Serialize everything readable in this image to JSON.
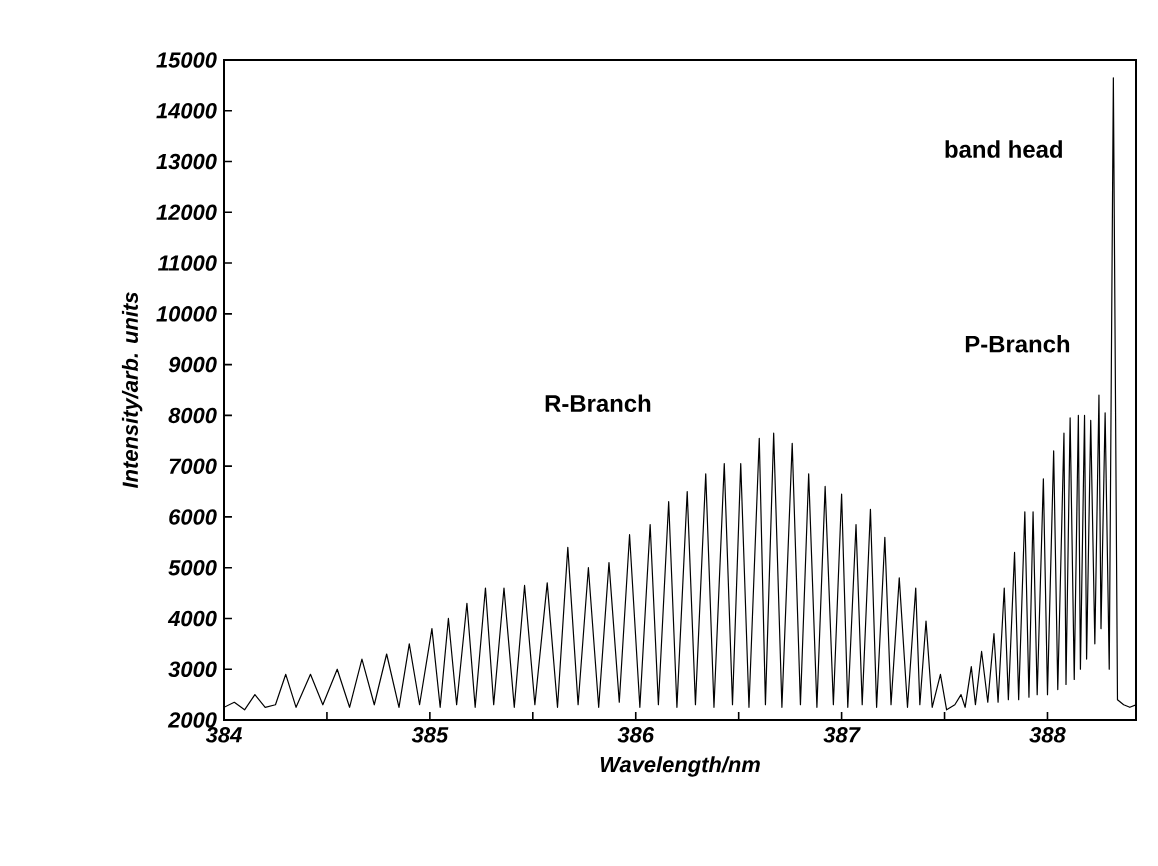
{
  "chart_data": {
    "type": "line",
    "xlabel": "Wavelength/nm",
    "ylabel": "Intensity/arb. units",
    "xlim": [
      384,
      388.43
    ],
    "ylim": [
      2000,
      15000
    ],
    "xticks": [
      384,
      {
        "value": 384.5,
        "label": null
      },
      385,
      {
        "value": 385.5,
        "label": null
      },
      386,
      {
        "value": 386.5,
        "label": null
      },
      387,
      {
        "value": 387.5,
        "label": null
      },
      388
    ],
    "yticks": [
      2000,
      3000,
      4000,
      5000,
      6000,
      7000,
      8000,
      9000,
      10000,
      11000,
      12000,
      13000,
      14000,
      15000
    ],
    "grid": false,
    "marker": "none",
    "line_style": "solid",
    "annotations": [
      "R-Branch",
      "P-Branch",
      "band head"
    ],
    "series": [
      {
        "color": "#000000",
        "x": [
          384.0,
          384.05,
          384.1,
          384.15,
          384.2,
          384.25,
          384.3,
          384.35,
          384.42,
          384.48,
          384.55,
          384.61,
          384.67,
          384.73,
          384.79,
          384.85,
          384.9,
          384.95,
          385.01,
          385.05,
          385.09,
          385.13,
          385.18,
          385.22,
          385.27,
          385.31,
          385.36,
          385.41,
          385.46,
          385.51,
          385.57,
          385.62,
          385.67,
          385.72,
          385.77,
          385.82,
          385.87,
          385.92,
          385.97,
          386.02,
          386.07,
          386.11,
          386.16,
          386.2,
          386.25,
          386.29,
          386.34,
          386.38,
          386.43,
          386.47,
          386.51,
          386.55,
          386.6,
          386.63,
          386.67,
          386.71,
          386.76,
          386.8,
          386.84,
          386.88,
          386.92,
          386.96,
          387.0,
          387.03,
          387.07,
          387.1,
          387.14,
          387.17,
          387.21,
          387.24,
          387.28,
          387.32,
          387.36,
          387.38,
          387.41,
          387.44,
          387.48,
          387.51,
          387.55,
          387.58,
          387.6,
          387.63,
          387.65,
          387.68,
          387.71,
          387.74,
          387.76,
          387.79,
          387.81,
          387.84,
          387.86,
          387.89,
          387.91,
          387.93,
          387.95,
          387.98,
          388.0,
          388.03,
          388.05,
          388.08,
          388.09,
          388.11,
          388.13,
          388.15,
          388.16,
          388.18,
          388.19,
          388.21,
          388.23,
          388.25,
          388.26,
          388.28,
          388.3,
          388.32,
          388.34,
          388.37,
          388.4,
          388.43
        ],
        "values": [
          2250,
          2350,
          2200,
          2500,
          2250,
          2300,
          2900,
          2250,
          2900,
          2300,
          3000,
          2250,
          3200,
          2300,
          3300,
          2250,
          3500,
          2300,
          3800,
          2250,
          4000,
          2300,
          4300,
          2250,
          4600,
          2300,
          4600,
          2250,
          4650,
          2300,
          4700,
          2250,
          5400,
          2300,
          5000,
          2250,
          5100,
          2350,
          5650,
          2250,
          5850,
          2300,
          6300,
          2250,
          6500,
          2300,
          6850,
          2250,
          7050,
          2300,
          7050,
          2250,
          7550,
          2300,
          7650,
          2250,
          7450,
          2300,
          6850,
          2250,
          6600,
          2300,
          6450,
          2250,
          5850,
          2300,
          6150,
          2250,
          5600,
          2300,
          4800,
          2250,
          4600,
          2300,
          3950,
          2250,
          2900,
          2200,
          2300,
          2500,
          2250,
          3050,
          2300,
          3350,
          2350,
          3700,
          2350,
          4600,
          2400,
          5300,
          2400,
          6100,
          2450,
          6100,
          2500,
          6750,
          2500,
          7300,
          2600,
          7650,
          2700,
          7950,
          2800,
          8000,
          3000,
          8000,
          3200,
          7900,
          3500,
          8400,
          3800,
          8050,
          3000,
          14650,
          2400,
          2300,
          2250,
          2300
        ]
      }
    ]
  }
}
